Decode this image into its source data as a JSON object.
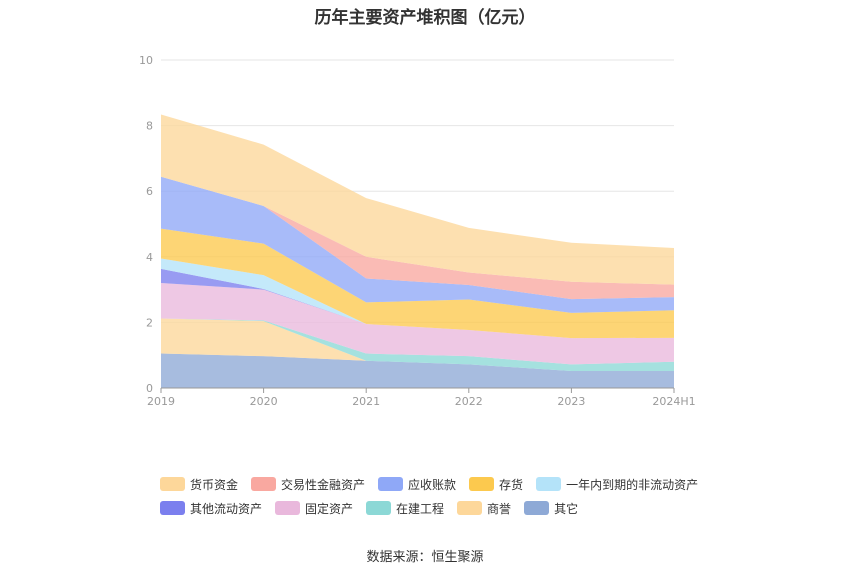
{
  "source": "数据来源：恒生聚源",
  "chart_data": {
    "type": "area",
    "stacked": true,
    "title": "历年主要资产堆积图（亿元）",
    "x": [
      "2019",
      "2020",
      "2021",
      "2022",
      "2023",
      "2024H1"
    ],
    "ylim": [
      0,
      10
    ],
    "yticks": [
      0,
      2,
      4,
      6,
      8,
      10
    ],
    "grid": true,
    "legend_position": "bottom",
    "series": [
      {
        "name": "其它",
        "color": "#8ea9d6",
        "values": [
          1.05,
          0.97,
          0.83,
          0.72,
          0.52,
          0.52
        ]
      },
      {
        "name": "商誉",
        "color": "#fdd79a",
        "values": [
          1.07,
          1.07,
          0.0,
          0.0,
          0.0,
          0.0
        ]
      },
      {
        "name": "在建工程",
        "color": "#8cd8d6",
        "values": [
          0.0,
          0.02,
          0.22,
          0.25,
          0.2,
          0.28
        ]
      },
      {
        "name": "固定资产",
        "color": "#e9b8dc",
        "values": [
          1.08,
          0.94,
          0.9,
          0.8,
          0.8,
          0.73
        ]
      },
      {
        "name": "其他流动资产",
        "color": "#7b7fee",
        "values": [
          0.43,
          0.02,
          0.0,
          0.0,
          0.0,
          0.0
        ]
      },
      {
        "name": "一年内到期的非流动资产",
        "color": "#b4e3f9",
        "values": [
          0.32,
          0.42,
          0.0,
          0.0,
          0.0,
          0.0
        ]
      },
      {
        "name": "存货",
        "color": "#fcc94e",
        "values": [
          0.91,
          0.96,
          0.66,
          0.93,
          0.77,
          0.84
        ]
      },
      {
        "name": "应收账款",
        "color": "#8fa8f7",
        "values": [
          1.58,
          1.15,
          0.73,
          0.44,
          0.42,
          0.4
        ]
      },
      {
        "name": "交易性金融资产",
        "color": "#f9a8a0",
        "values": [
          0.0,
          0.0,
          0.66,
          0.38,
          0.53,
          0.38
        ]
      },
      {
        "name": "货币资金",
        "color": "#fdd79a",
        "values": [
          1.9,
          1.87,
          1.79,
          1.36,
          1.19,
          1.12
        ]
      }
    ],
    "legend_order": [
      "货币资金",
      "交易性金融资产",
      "应收账款",
      "存货",
      "一年内到期的非流动资产",
      "其他流动资产",
      "固定资产",
      "在建工程",
      "商誉",
      "其它"
    ]
  }
}
